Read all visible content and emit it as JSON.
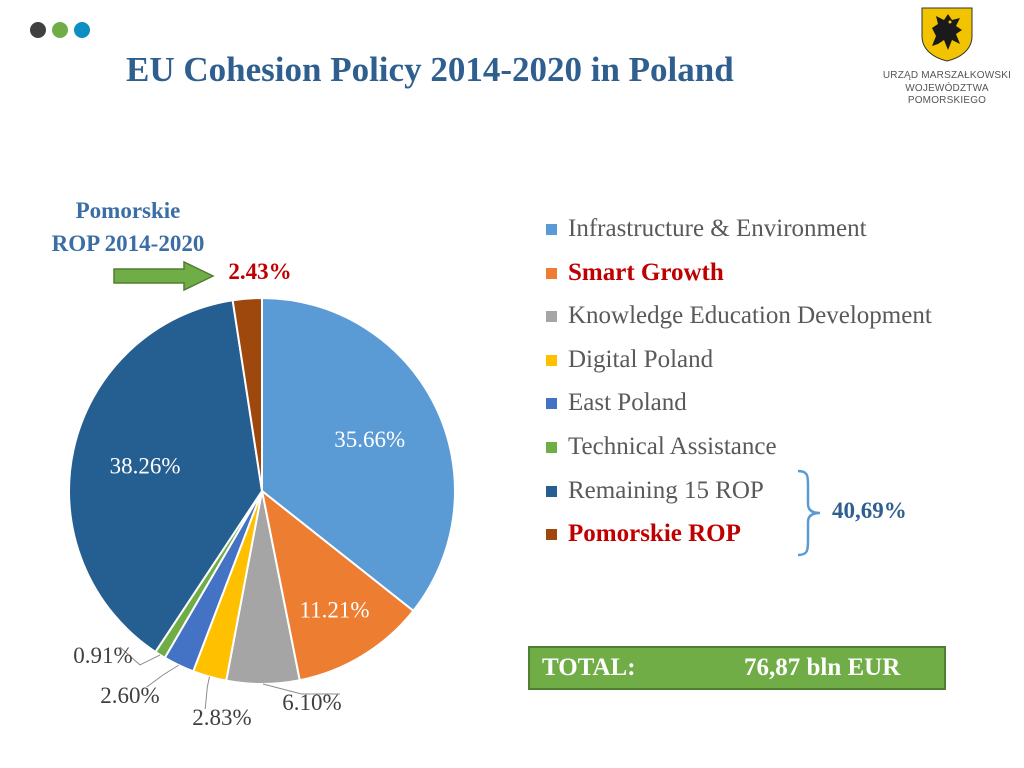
{
  "header": {
    "title": "EU Cohesion Policy 2014-2020 in Poland",
    "dots": [
      "#404040",
      "#70ad47",
      "#0e8fc4"
    ]
  },
  "logo": {
    "line1": "URZĄD MARSZAŁKOWSKI",
    "line2": "WOJEWÓDZTWA POMORSKIEGO",
    "shield_color": "#f2c400",
    "griffin_color": "#1a1a1a"
  },
  "callout": {
    "rop_line1": "Pomorskie",
    "rop_line2": "ROP 2014-2020",
    "arrow_color": "#70ad47"
  },
  "chart_data": {
    "type": "pie",
    "title": "EU Cohesion Policy 2014-2020 in Poland",
    "categories": [
      "Infrastructure & Environment",
      "Smart Growth",
      "Knowledge Education Development",
      "Digital Poland",
      "East Poland",
      "Technical Assistance",
      "Remaining 15 ROP",
      "Pomorskie ROP"
    ],
    "values": [
      35.66,
      11.21,
      6.1,
      2.83,
      2.6,
      0.91,
      38.26,
      2.43
    ],
    "labels": [
      "35.66%",
      "11.21%",
      "6.10%",
      "2.83%",
      "2.60%",
      "0.91%",
      "38.26%",
      "2.43%"
    ],
    "colors": [
      "#5b9bd5",
      "#ed7d31",
      "#a5a5a5",
      "#ffc000",
      "#4472c4",
      "#70ad47",
      "#255e91",
      "#9e480e"
    ],
    "highlighted": [
      "Smart Growth",
      "Pomorskie ROP"
    ],
    "legend_position": "right",
    "start_angle_deg": 0,
    "direction": "clockwise"
  },
  "brace": {
    "value": "40,69%",
    "color": "#5b9bd5"
  },
  "total": {
    "label": "TOTAL:",
    "value": "76,87 bln EUR"
  }
}
